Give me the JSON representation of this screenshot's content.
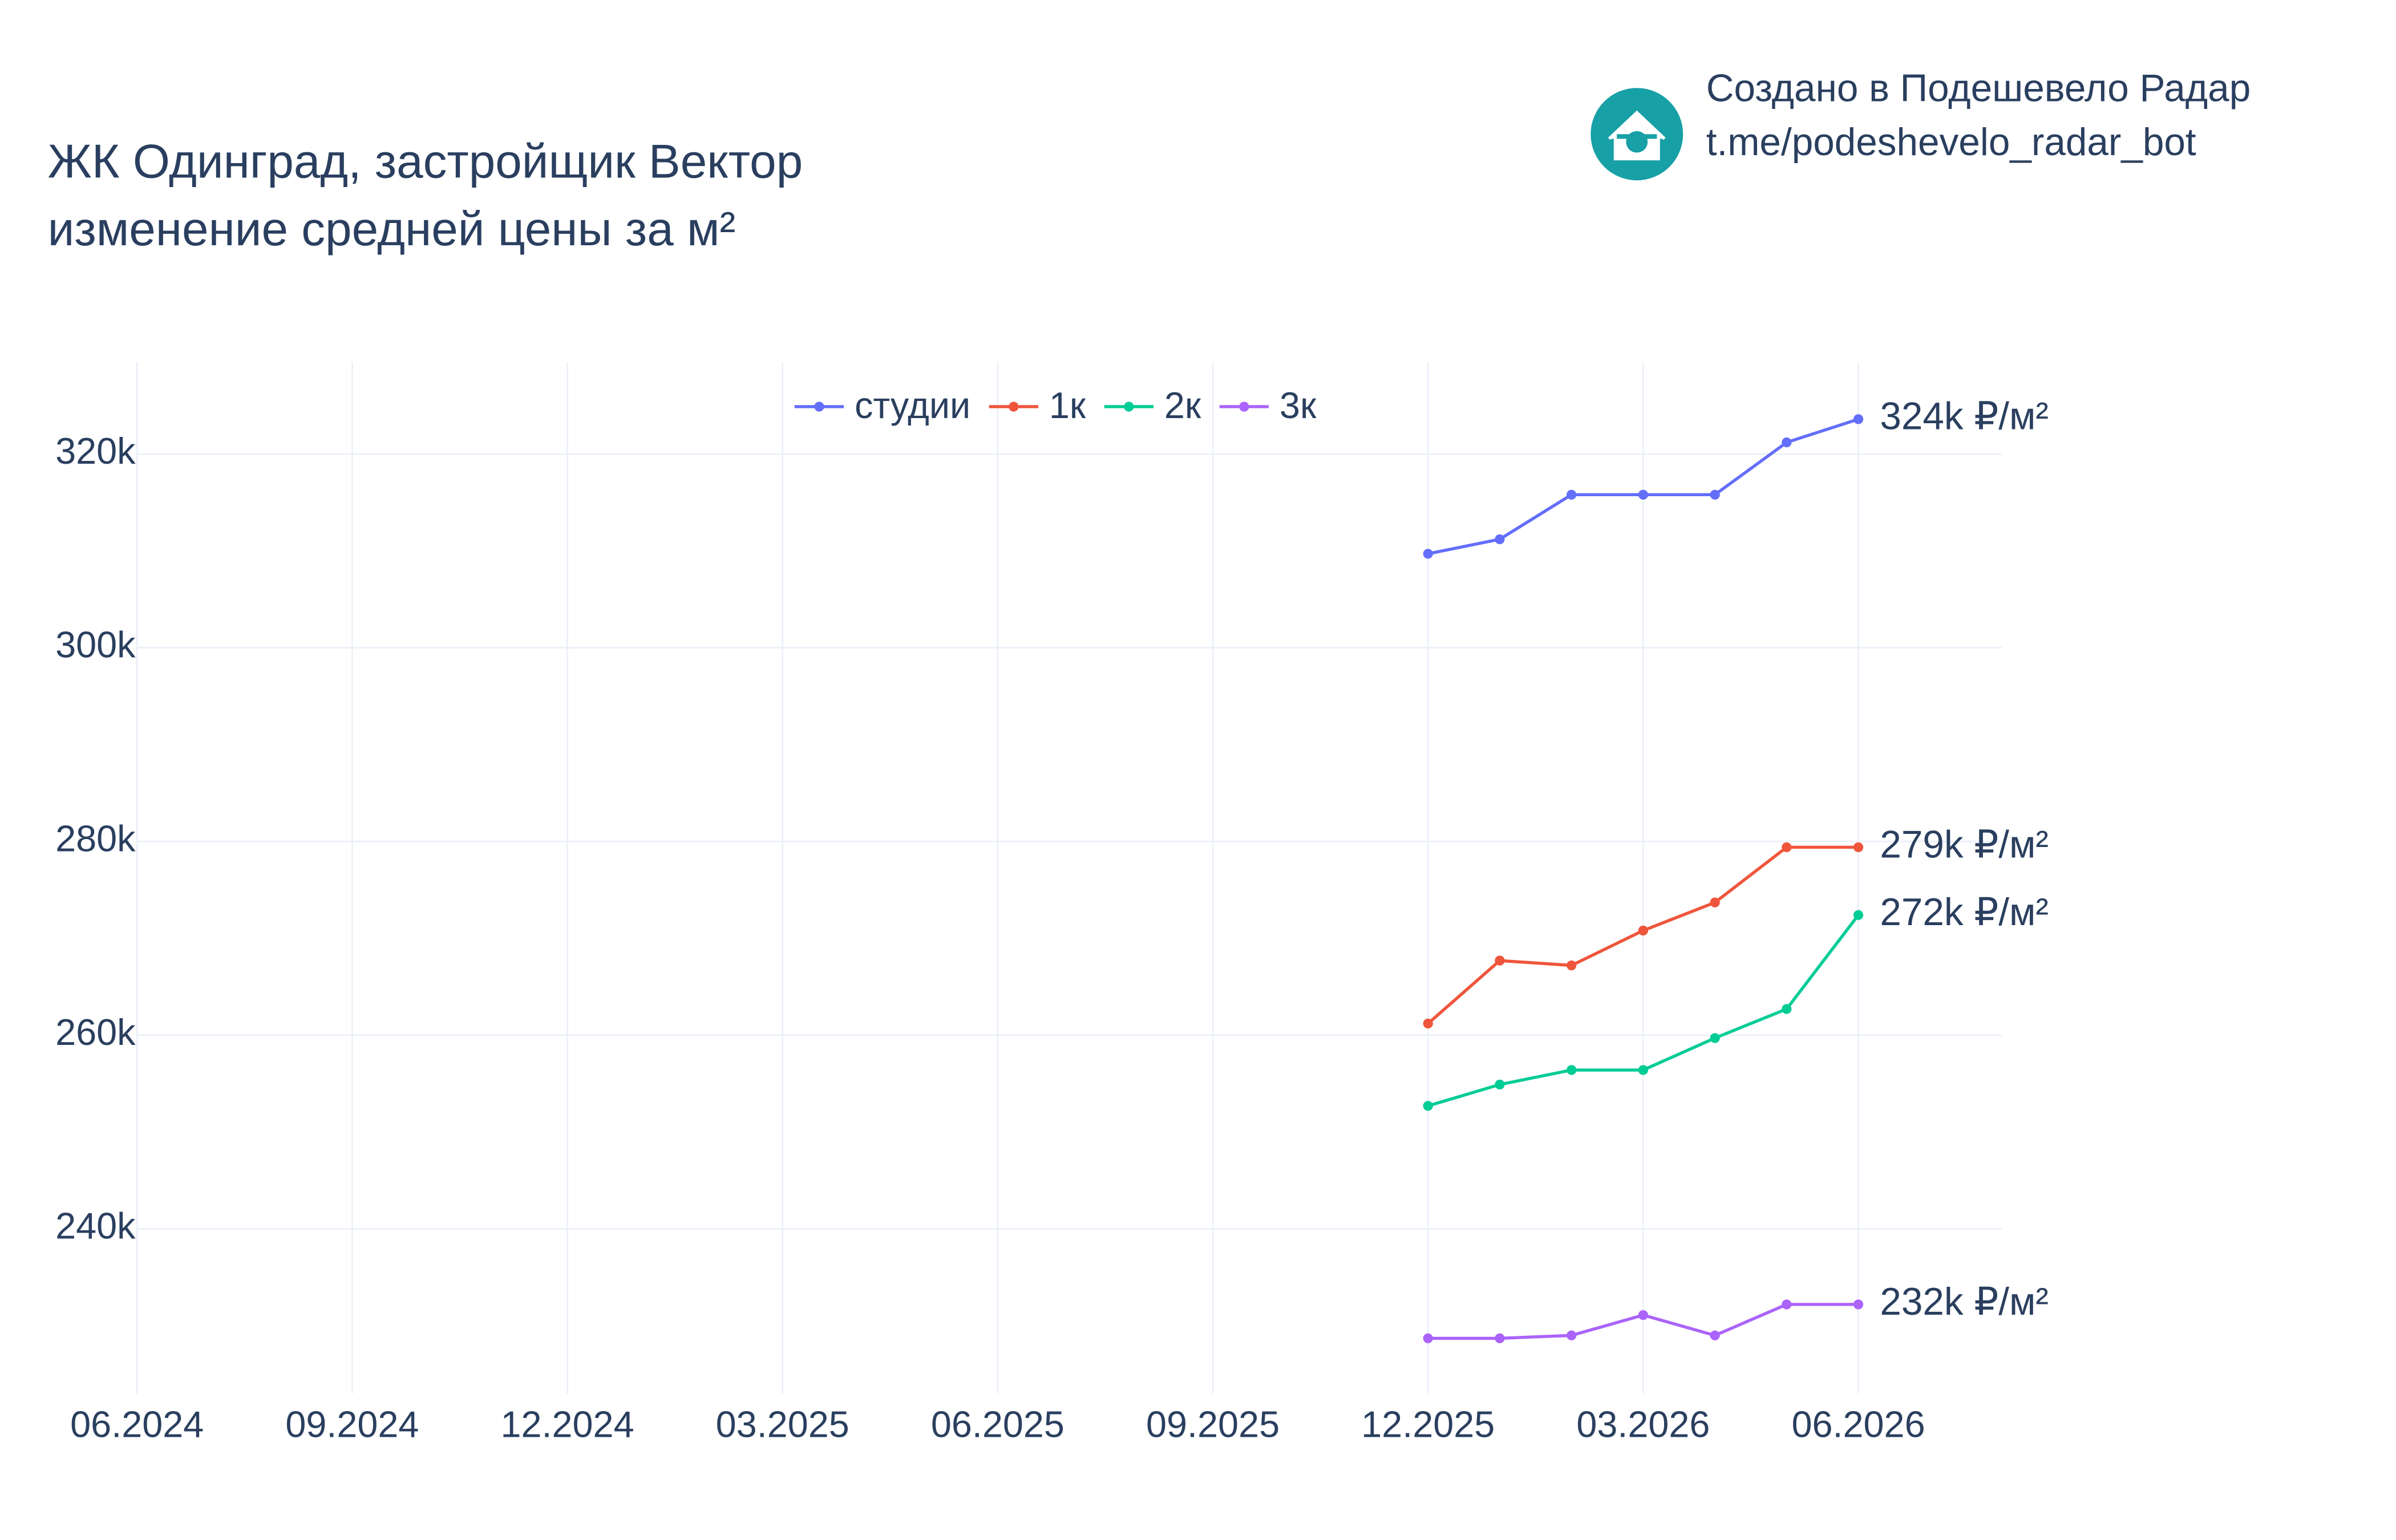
{
  "header": {
    "title_lines": [
      "ЖК Одинград, застройщик Вектор",
      "изменение средней цены за м²"
    ],
    "brand_lines": [
      "Создано в Подешевело Радар",
      "t.me/podeshevelo_radar_bot"
    ]
  },
  "chart_data": {
    "type": "line",
    "x": [
      "12.2025",
      "01.2026",
      "02.2026",
      "03.2026",
      "04.2026",
      "05.2026",
      "06.2026"
    ],
    "series": [
      {
        "name": "студии",
        "color": "#636efa",
        "values": [
          309700,
          311200,
          315800,
          315800,
          315800,
          321200,
          323600
        ],
        "value_labels": [
          null,
          null,
          null,
          null,
          null,
          null,
          "324k ₽/м²"
        ]
      },
      {
        "name": "1к",
        "color": "#ef553b",
        "values": [
          261200,
          267700,
          267200,
          270800,
          273700,
          279400,
          279400
        ],
        "value_labels": [
          null,
          null,
          null,
          null,
          null,
          null,
          "279k ₽/м²"
        ]
      },
      {
        "name": "2к",
        "color": "#00cc96",
        "values": [
          252700,
          254900,
          256400,
          256400,
          259700,
          262700,
          272400
        ],
        "value_labels": [
          null,
          null,
          null,
          null,
          null,
          null,
          "272k ₽/м²"
        ]
      },
      {
        "name": "3к",
        "color": "#ab63fa",
        "values": [
          228700,
          228700,
          229000,
          231100,
          229000,
          232200,
          232200
        ],
        "value_labels": [
          null,
          null,
          null,
          null,
          null,
          null,
          "232k ₽/м²"
        ]
      }
    ],
    "xlim": [
      "06.2024",
      "08.2026"
    ],
    "xticks": [
      "06.2024",
      "09.2024",
      "12.2024",
      "03.2025",
      "06.2025",
      "09.2025",
      "12.2025",
      "03.2026",
      "06.2026"
    ],
    "ylim": [
      223000,
      329500
    ],
    "yticks": [
      {
        "value": 240000,
        "label": "240k"
      },
      {
        "value": 260000,
        "label": "260k"
      },
      {
        "value": 280000,
        "label": "280k"
      },
      {
        "value": 300000,
        "label": "300k"
      },
      {
        "value": 320000,
        "label": "320k"
      }
    ],
    "grid": true,
    "legend": "top"
  }
}
